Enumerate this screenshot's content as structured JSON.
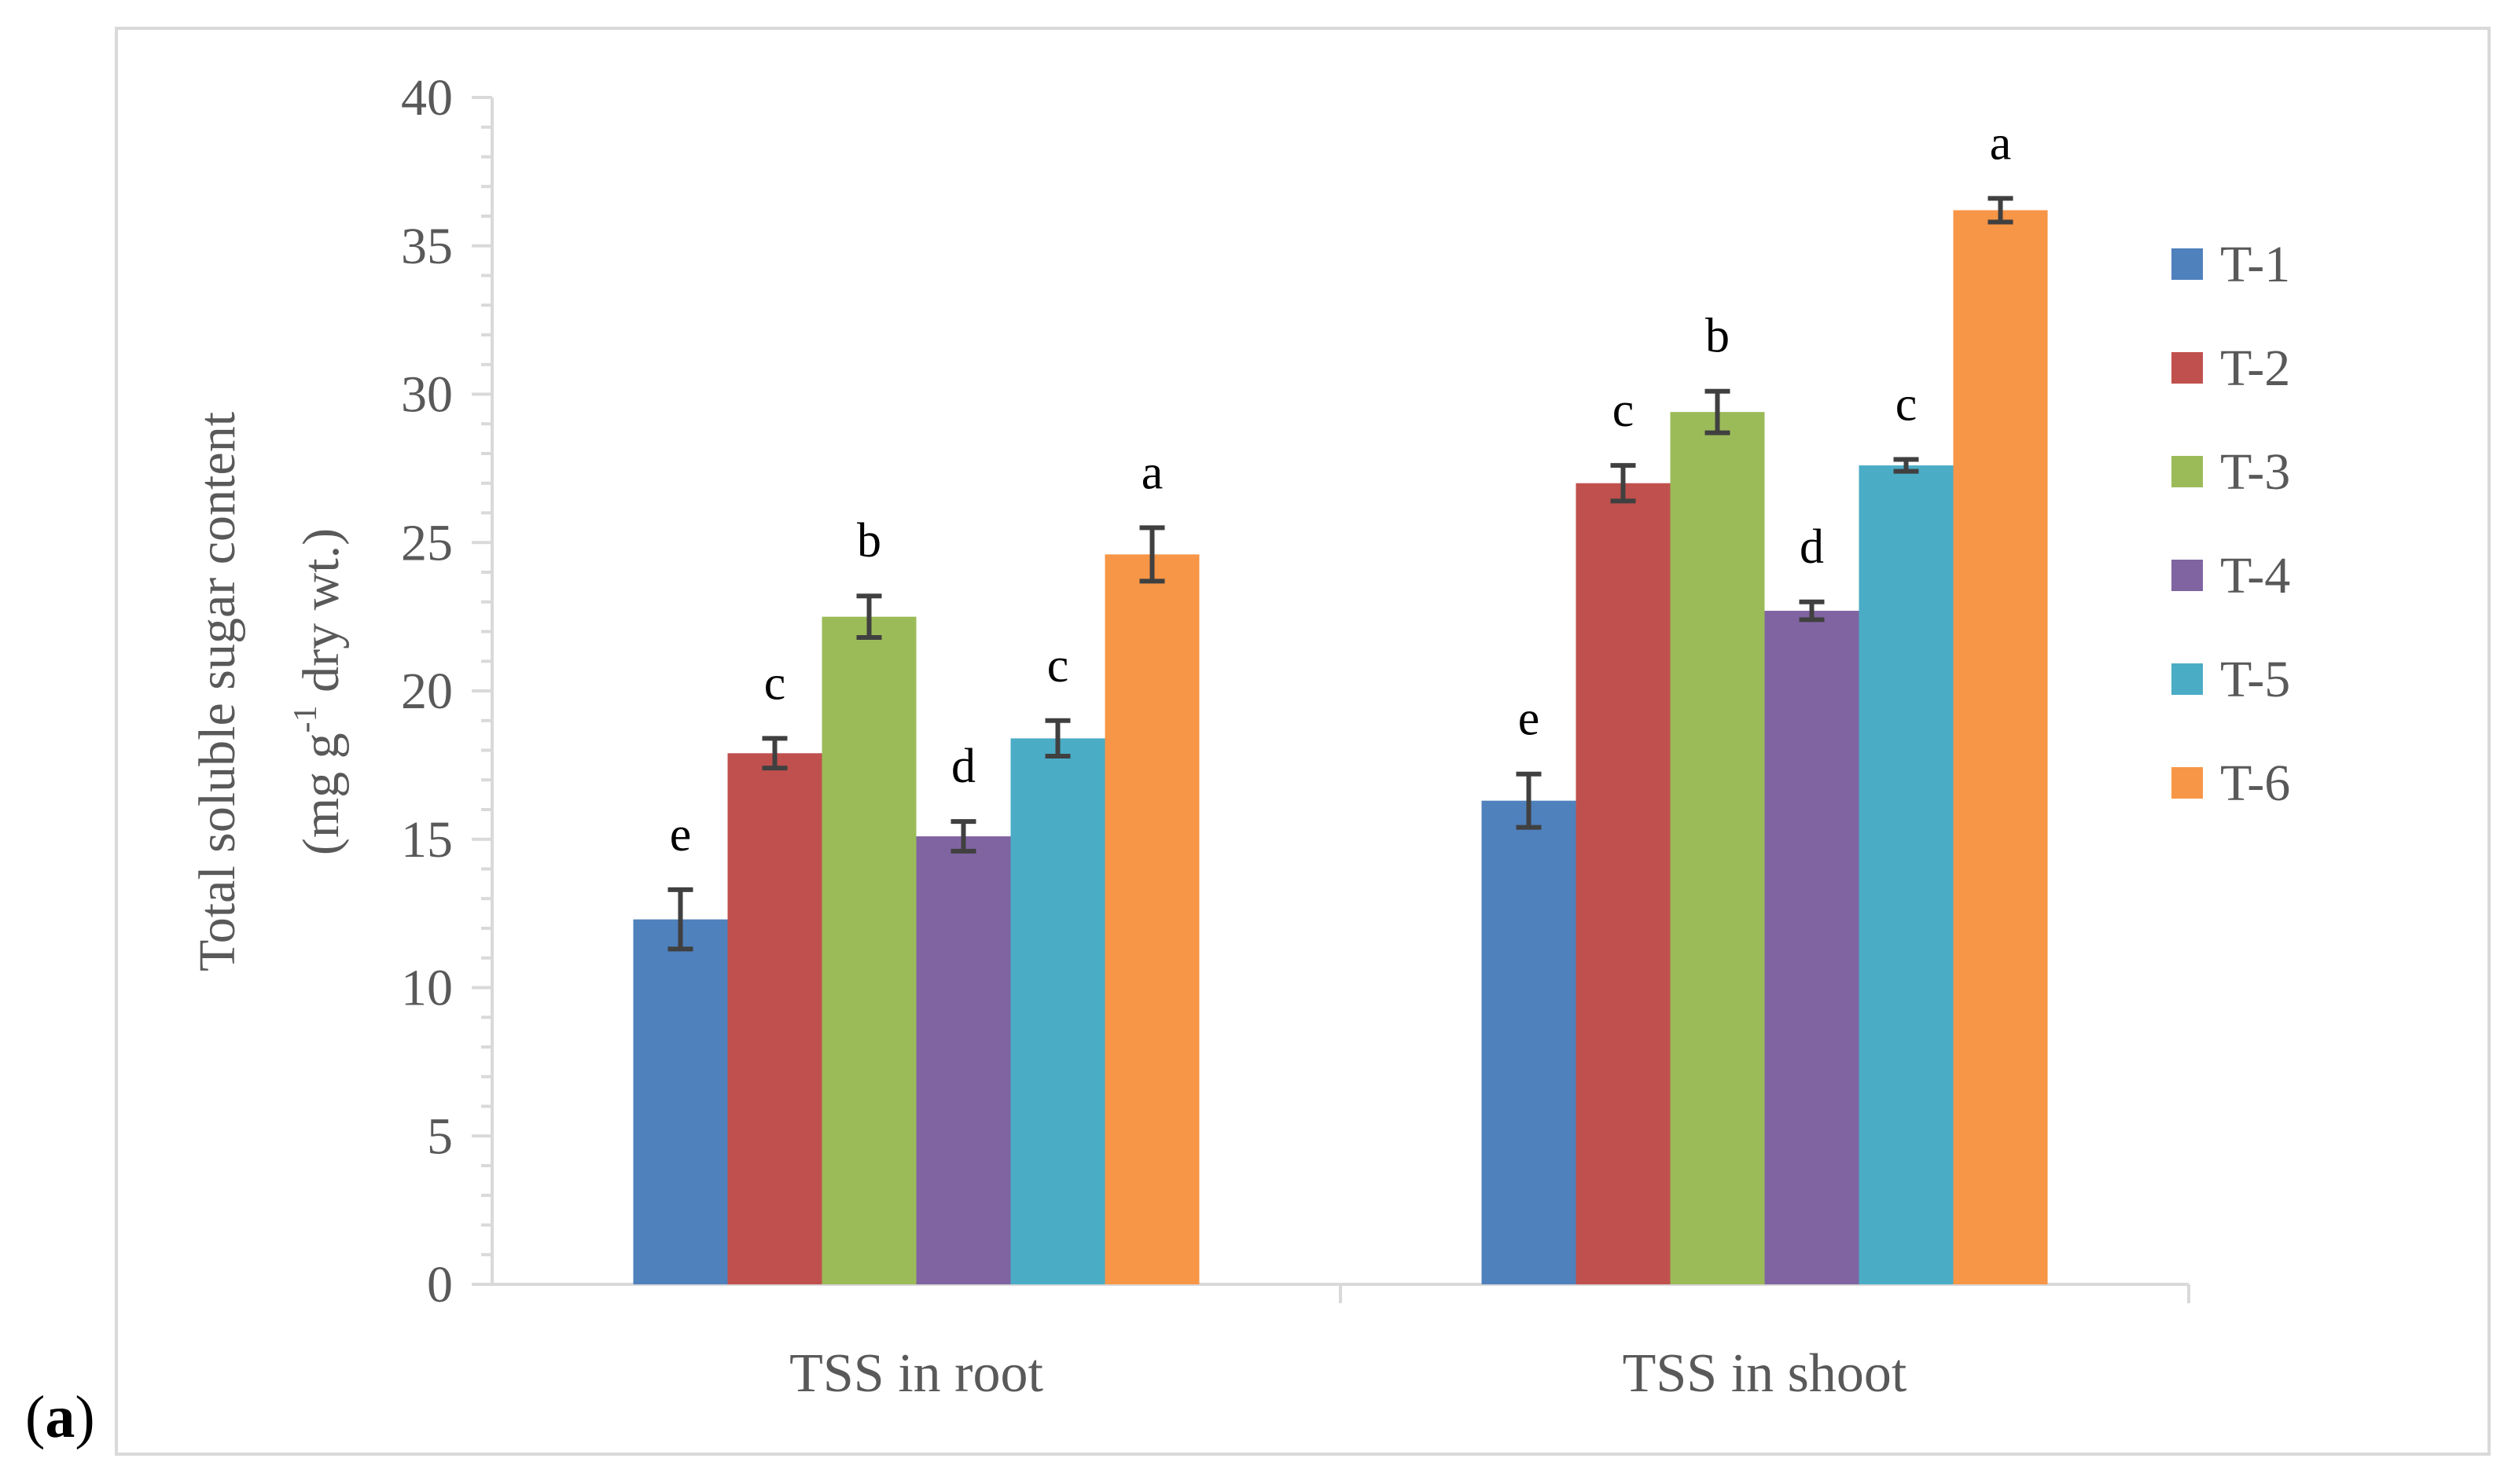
{
  "panel": {
    "open": "(",
    "letter": "a",
    "close": ")"
  },
  "chart_data": {
    "type": "bar",
    "title": "",
    "ylabel_line1": "Total soluble sugar content",
    "ylabel_line2_parts": [
      "(mg g",
      "-1",
      " dry wt.)"
    ],
    "xlabel": "",
    "categories": [
      "TSS in root",
      "TSS in shoot"
    ],
    "ylim": [
      0,
      40
    ],
    "yticks": [
      0,
      5,
      10,
      15,
      20,
      25,
      30,
      35,
      40
    ],
    "legend_position": "right",
    "series": [
      {
        "name": "T-1",
        "color": "#4f81bd",
        "values": [
          12.3,
          16.3
        ],
        "errors": [
          1.0,
          0.9
        ],
        "letters": [
          "e",
          "e"
        ]
      },
      {
        "name": "T-2",
        "color": "#c0504d",
        "values": [
          17.9,
          27.0
        ],
        "errors": [
          0.5,
          0.6
        ],
        "letters": [
          "c",
          "c"
        ]
      },
      {
        "name": "T-3",
        "color": "#9bbb59",
        "values": [
          22.5,
          29.4
        ],
        "errors": [
          0.7,
          0.7
        ],
        "letters": [
          "b",
          "b"
        ]
      },
      {
        "name": "T-4",
        "color": "#8064a2",
        "values": [
          15.1,
          22.7
        ],
        "errors": [
          0.5,
          0.3
        ],
        "letters": [
          "d",
          "d"
        ]
      },
      {
        "name": "T-5",
        "color": "#4bacc6",
        "values": [
          18.4,
          27.6
        ],
        "errors": [
          0.6,
          0.2
        ],
        "letters": [
          "c",
          "c"
        ]
      },
      {
        "name": "T-6",
        "color": "#f79646",
        "values": [
          24.6,
          36.2
        ],
        "errors": [
          0.9,
          0.4
        ],
        "letters": [
          "a",
          "a"
        ]
      }
    ]
  }
}
